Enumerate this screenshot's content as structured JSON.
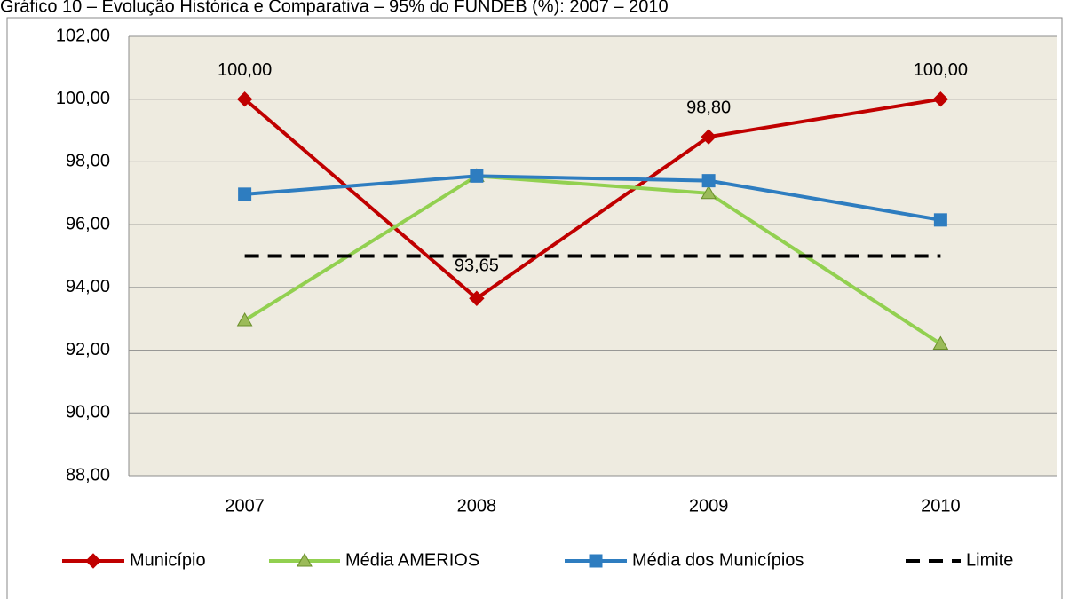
{
  "chart_data": {
    "type": "line",
    "title": "Gráfico 10 – Evolução Histórica e Comparativa – 95% do FUNDEB (%): 2007 – 2010",
    "categories": [
      "2007",
      "2008",
      "2009",
      "2010"
    ],
    "series": [
      {
        "name": "Município",
        "color": "#c00000",
        "marker": "diamond",
        "values": [
          100,
          93.65,
          98.8,
          100
        ],
        "value_labels": [
          "100,00",
          "93,65",
          "98,80",
          "100,00"
        ]
      },
      {
        "name": "Média AMERIOS",
        "color": "#92d050",
        "marker": "triangle",
        "values": [
          92.95,
          97.55,
          97.0,
          92.2
        ]
      },
      {
        "name": "Média dos Municípios",
        "color": "#2e7dc0",
        "marker": "square",
        "values": [
          96.97,
          97.55,
          97.4,
          96.15
        ]
      },
      {
        "name": "Limite",
        "color": "#000000",
        "line_style": "dashed",
        "values": [
          95,
          95,
          95,
          95
        ]
      }
    ],
    "ylim": [
      88,
      102
    ],
    "yticks": [
      {
        "value": 88,
        "label": "88,00"
      },
      {
        "value": 90,
        "label": "90,00"
      },
      {
        "value": 92,
        "label": "92,00"
      },
      {
        "value": 94,
        "label": "94,00"
      },
      {
        "value": 96,
        "label": "96,00"
      },
      {
        "value": 98,
        "label": "98,00"
      },
      {
        "value": 100,
        "label": "100,00"
      },
      {
        "value": 102,
        "label": "102,00"
      }
    ],
    "grid": true,
    "legend": "bottom"
  }
}
